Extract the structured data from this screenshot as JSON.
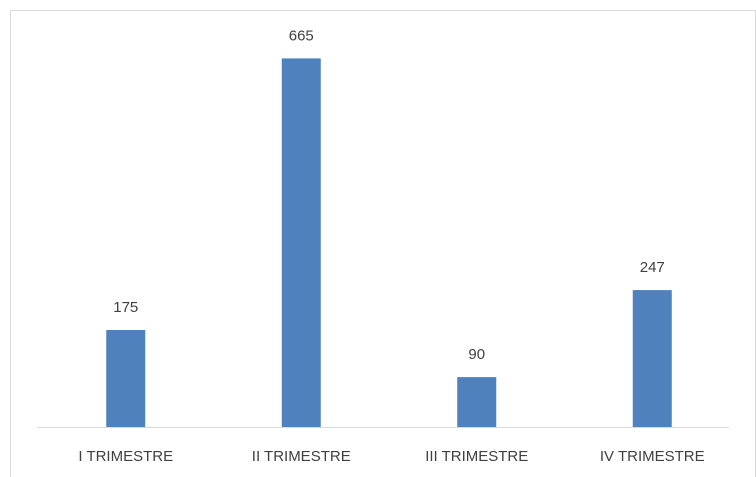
{
  "chart_data": {
    "type": "bar",
    "categories": [
      "I TRIMESTRE",
      "II TRIMESTRE",
      "III TRIMESTRE",
      "IV TRIMESTRE"
    ],
    "values": [
      175,
      665,
      90,
      247
    ],
    "color": "#4f81bd",
    "ylim": [
      0,
      700
    ],
    "data_labels": true
  }
}
